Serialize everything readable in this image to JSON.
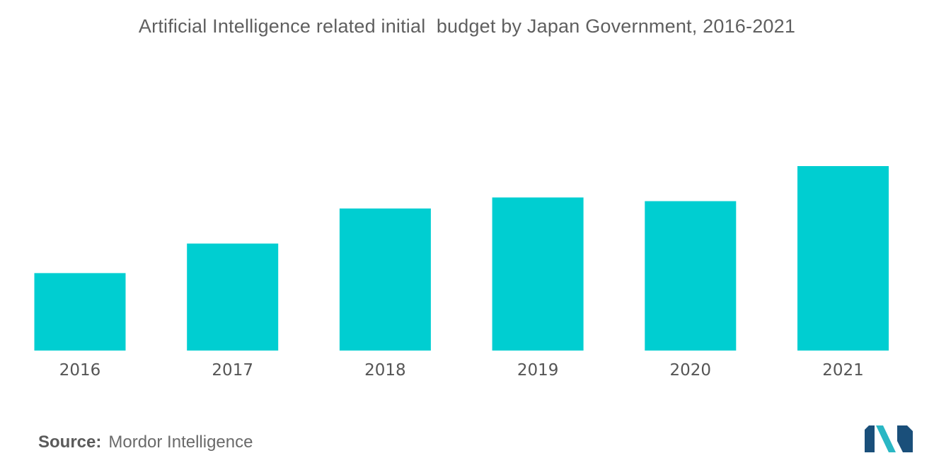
{
  "chart_data": {
    "type": "bar",
    "title": "Artificial Intelligence related initial  budget by Japan Government, 2016-2021",
    "categories": [
      "2016",
      "2017",
      "2018",
      "2019",
      "2020",
      "2021"
    ],
    "values": [
      42,
      58,
      77,
      83,
      81,
      100
    ],
    "ylim": [
      0,
      100
    ],
    "xlabel": "",
    "ylabel": "",
    "grid": false,
    "legend": "none",
    "bar_color": "#00CED1"
  },
  "source": {
    "label": "Source:",
    "text": "Mordor Intelligence"
  },
  "logo": {
    "icon": "mordor-intelligence-logo",
    "colors": [
      "#1a4f7a",
      "#2ab7c4"
    ]
  }
}
